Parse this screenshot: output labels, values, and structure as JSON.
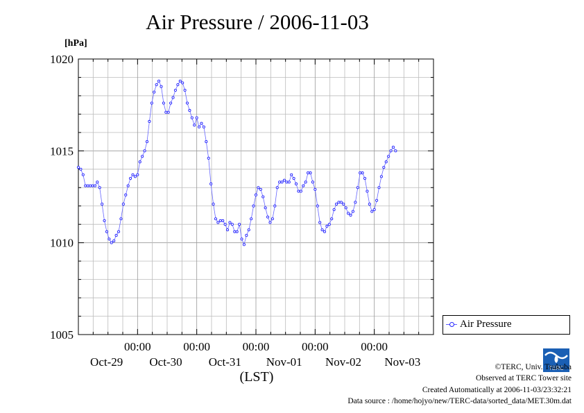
{
  "chart_data": {
    "type": "line",
    "title": "Air Pressure / 2006-11-03",
    "ylabel": "[hPa]",
    "xlabel": "(LST)",
    "ylim": [
      1005,
      1020
    ],
    "yticks": [
      1005,
      1010,
      1015,
      1020
    ],
    "xlim_days": [
      0,
      6.0
    ],
    "xticks": [
      {
        "time": "00:00",
        "date": "Oct-30"
      },
      {
        "time": "00:00",
        "date": "Oct-31"
      },
      {
        "time": "00:00",
        "date": "Nov-01"
      },
      {
        "time": "00:00",
        "date": "Nov-02"
      },
      {
        "time": "00:00",
        "date": "Nov-03"
      }
    ],
    "date_labels": [
      "Oct-29",
      "Oct-30",
      "Oct-31",
      "Nov-01",
      "Nov-02",
      "Nov-03"
    ],
    "grid": true,
    "legend_position": "bottom-right",
    "series": [
      {
        "name": "Air Pressure",
        "color": "#2222ff",
        "points": [
          [
            0.0,
            1014.1
          ],
          [
            0.04,
            1014.0
          ],
          [
            0.08,
            1013.7
          ],
          [
            0.12,
            1013.1
          ],
          [
            0.16,
            1013.1
          ],
          [
            0.2,
            1013.1
          ],
          [
            0.24,
            1013.1
          ],
          [
            0.28,
            1013.1
          ],
          [
            0.32,
            1013.3
          ],
          [
            0.36,
            1013.0
          ],
          [
            0.4,
            1012.1
          ],
          [
            0.44,
            1011.2
          ],
          [
            0.48,
            1010.6
          ],
          [
            0.52,
            1010.2
          ],
          [
            0.56,
            1010.0
          ],
          [
            0.6,
            1010.1
          ],
          [
            0.64,
            1010.4
          ],
          [
            0.68,
            1010.6
          ],
          [
            0.72,
            1011.3
          ],
          [
            0.76,
            1012.1
          ],
          [
            0.8,
            1012.6
          ],
          [
            0.84,
            1013.1
          ],
          [
            0.88,
            1013.5
          ],
          [
            0.92,
            1013.7
          ],
          [
            0.96,
            1013.6
          ],
          [
            1.0,
            1013.7
          ],
          [
            1.04,
            1014.4
          ],
          [
            1.08,
            1014.7
          ],
          [
            1.12,
            1015.0
          ],
          [
            1.16,
            1015.5
          ],
          [
            1.2,
            1016.6
          ],
          [
            1.24,
            1017.6
          ],
          [
            1.28,
            1018.2
          ],
          [
            1.32,
            1018.6
          ],
          [
            1.36,
            1018.8
          ],
          [
            1.4,
            1018.5
          ],
          [
            1.44,
            1017.6
          ],
          [
            1.48,
            1017.1
          ],
          [
            1.52,
            1017.1
          ],
          [
            1.56,
            1017.6
          ],
          [
            1.6,
            1017.9
          ],
          [
            1.64,
            1018.3
          ],
          [
            1.68,
            1018.6
          ],
          [
            1.72,
            1018.8
          ],
          [
            1.76,
            1018.7
          ],
          [
            1.8,
            1018.3
          ],
          [
            1.84,
            1017.6
          ],
          [
            1.88,
            1017.2
          ],
          [
            1.92,
            1016.8
          ],
          [
            1.96,
            1016.4
          ],
          [
            2.0,
            1016.8
          ],
          [
            2.04,
            1016.3
          ],
          [
            2.08,
            1016.5
          ],
          [
            2.12,
            1016.3
          ],
          [
            2.16,
            1015.5
          ],
          [
            2.2,
            1014.6
          ],
          [
            2.24,
            1013.2
          ],
          [
            2.28,
            1012.1
          ],
          [
            2.32,
            1011.3
          ],
          [
            2.36,
            1011.1
          ],
          [
            2.4,
            1011.2
          ],
          [
            2.44,
            1011.2
          ],
          [
            2.48,
            1011.0
          ],
          [
            2.52,
            1010.7
          ],
          [
            2.56,
            1011.1
          ],
          [
            2.6,
            1011.0
          ],
          [
            2.64,
            1010.6
          ],
          [
            2.68,
            1010.6
          ],
          [
            2.72,
            1011.0
          ],
          [
            2.76,
            1010.2
          ],
          [
            2.8,
            1009.9
          ],
          [
            2.84,
            1010.4
          ],
          [
            2.88,
            1010.7
          ],
          [
            2.92,
            1011.3
          ],
          [
            2.96,
            1012.0
          ],
          [
            3.0,
            1012.6
          ],
          [
            3.04,
            1013.0
          ],
          [
            3.08,
            1012.9
          ],
          [
            3.12,
            1012.5
          ],
          [
            3.16,
            1011.9
          ],
          [
            3.2,
            1011.4
          ],
          [
            3.24,
            1011.1
          ],
          [
            3.28,
            1011.3
          ],
          [
            3.32,
            1012.0
          ],
          [
            3.36,
            1013.0
          ],
          [
            3.4,
            1013.3
          ],
          [
            3.44,
            1013.3
          ],
          [
            3.48,
            1013.4
          ],
          [
            3.52,
            1013.3
          ],
          [
            3.56,
            1013.3
          ],
          [
            3.6,
            1013.7
          ],
          [
            3.64,
            1013.5
          ],
          [
            3.68,
            1013.2
          ],
          [
            3.72,
            1012.8
          ],
          [
            3.76,
            1012.8
          ],
          [
            3.8,
            1013.1
          ],
          [
            3.84,
            1013.3
          ],
          [
            3.88,
            1013.8
          ],
          [
            3.92,
            1013.8
          ],
          [
            3.96,
            1013.3
          ],
          [
            4.0,
            1012.9
          ],
          [
            4.04,
            1012.0
          ],
          [
            4.08,
            1011.1
          ],
          [
            4.12,
            1010.7
          ],
          [
            4.16,
            1010.6
          ],
          [
            4.2,
            1010.9
          ],
          [
            4.24,
            1011.0
          ],
          [
            4.28,
            1011.3
          ],
          [
            4.32,
            1011.8
          ],
          [
            4.36,
            1012.1
          ],
          [
            4.4,
            1012.2
          ],
          [
            4.44,
            1012.2
          ],
          [
            4.48,
            1012.1
          ],
          [
            4.52,
            1011.9
          ],
          [
            4.56,
            1011.6
          ],
          [
            4.6,
            1011.5
          ],
          [
            4.64,
            1011.7
          ],
          [
            4.68,
            1012.2
          ],
          [
            4.72,
            1013.0
          ],
          [
            4.76,
            1013.8
          ],
          [
            4.8,
            1013.8
          ],
          [
            4.84,
            1013.5
          ],
          [
            4.88,
            1012.8
          ],
          [
            4.92,
            1012.1
          ],
          [
            4.96,
            1011.7
          ],
          [
            5.0,
            1011.8
          ],
          [
            5.04,
            1012.3
          ],
          [
            5.08,
            1013.0
          ],
          [
            5.12,
            1013.6
          ],
          [
            5.16,
            1014.1
          ],
          [
            5.2,
            1014.4
          ],
          [
            5.24,
            1014.7
          ],
          [
            5.28,
            1015.0
          ],
          [
            5.32,
            1015.2
          ],
          [
            5.36,
            1015.0
          ]
        ]
      }
    ]
  },
  "credits": {
    "copyright": "©TERC, Univ. Tsukuba",
    "observed": "Observed at TERC Tower site",
    "created": "Created Automatically at 2006-11-03/23:32:21",
    "source": "Data source : /home/hojyo/new/TERC-data/sorted_data/MET.30m.dat"
  },
  "logo_text": "TERC"
}
